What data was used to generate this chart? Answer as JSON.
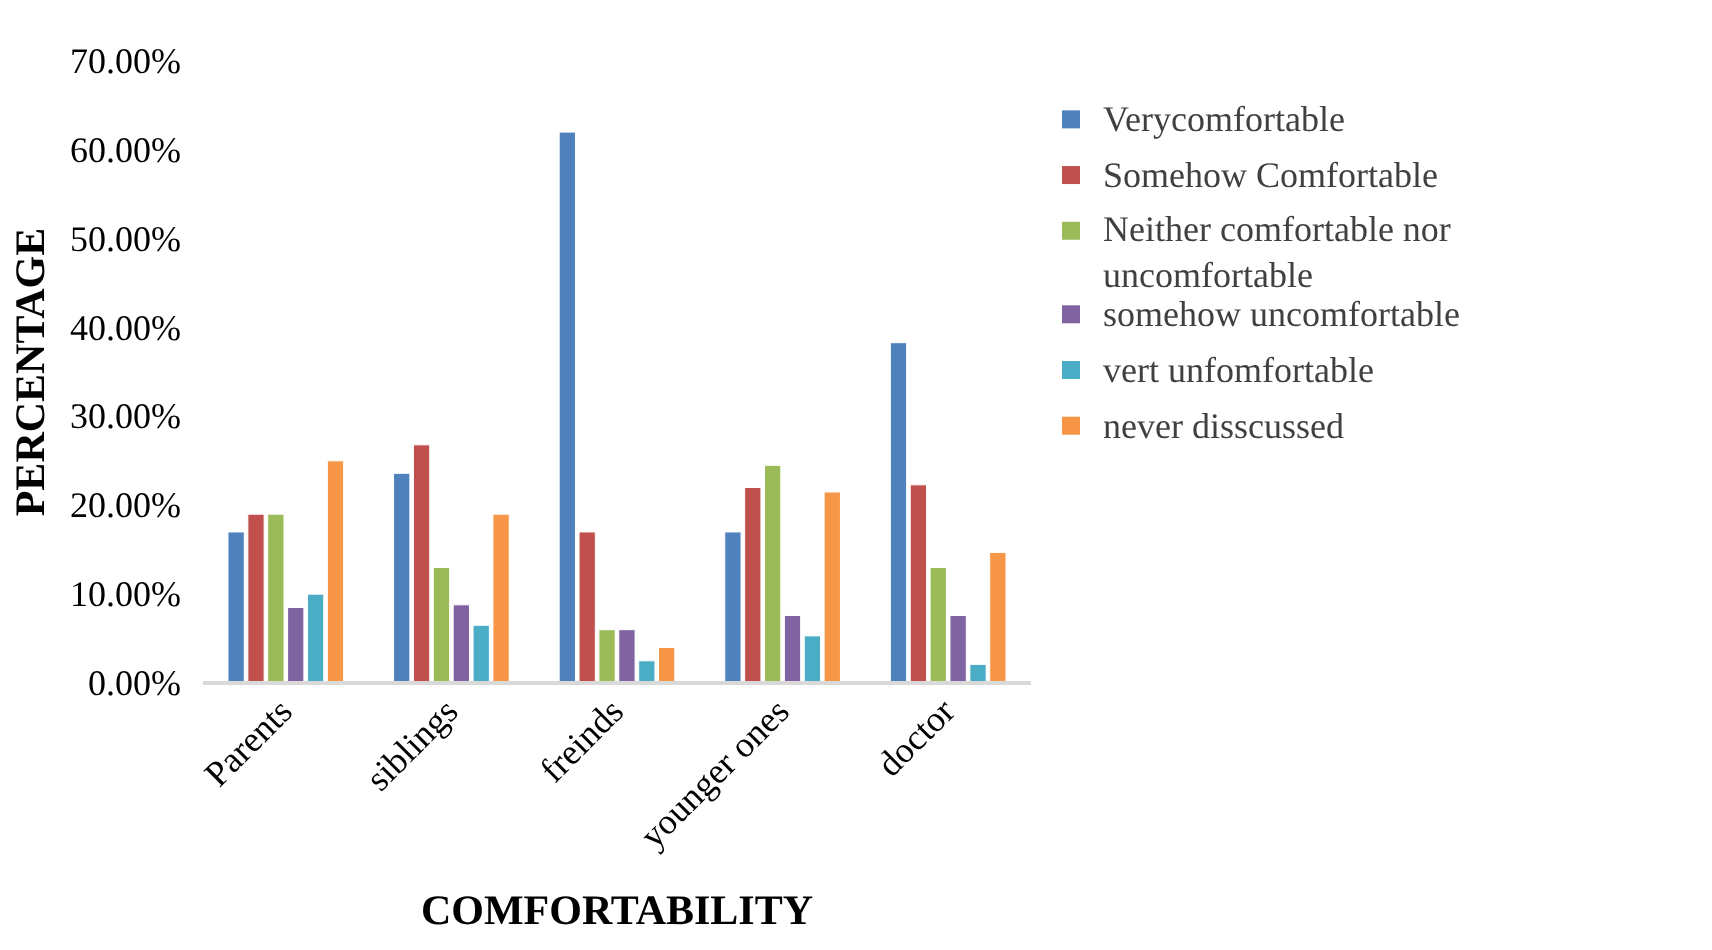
{
  "chart_data": {
    "type": "bar",
    "xlabel": "COMFORTABILITY",
    "ylabel": "PERCENTAGE",
    "categories": [
      "Parents",
      "siblings",
      "freinds",
      "younger ones",
      "doctor"
    ],
    "series": [
      {
        "name": "Verycomfortable",
        "color": "#4f81bd",
        "values": [
          17,
          23.6,
          62,
          17,
          38.3
        ]
      },
      {
        "name": "Somehow Comfortable",
        "color": "#c0504d",
        "values": [
          19,
          26.8,
          17,
          22,
          22.3
        ]
      },
      {
        "name": "Neither comfortable nor uncomfortable",
        "color": "#9bbb59",
        "values": [
          19,
          13,
          6,
          24.5,
          13
        ]
      },
      {
        "name": "somehow uncomfortable",
        "color": "#8064a2",
        "values": [
          8.5,
          8.8,
          6,
          7.6,
          7.6
        ]
      },
      {
        "name": "vert unfomfortable",
        "color": "#4bacc6",
        "values": [
          10,
          6.5,
          2.5,
          5.3,
          2.1
        ]
      },
      {
        "name": "never disscussed",
        "color": "#f79646",
        "values": [
          25,
          19,
          4,
          21.5,
          14.7
        ]
      }
    ],
    "ylim": [
      0,
      70
    ],
    "yticks": [
      {
        "value": 0,
        "label": "0.00%"
      },
      {
        "value": 10,
        "label": "10.00%"
      },
      {
        "value": 20,
        "label": "20.00%"
      },
      {
        "value": 30,
        "label": "30.00%"
      },
      {
        "value": 40,
        "label": "40.00%"
      },
      {
        "value": 50,
        "label": "50.00%"
      },
      {
        "value": 60,
        "label": "60.00%"
      },
      {
        "value": 70,
        "label": "70.00%"
      }
    ],
    "grid": false,
    "legend": "right"
  }
}
